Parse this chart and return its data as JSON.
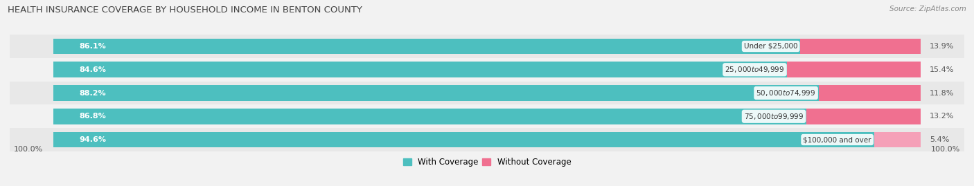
{
  "title": "HEALTH INSURANCE COVERAGE BY HOUSEHOLD INCOME IN BENTON COUNTY",
  "source": "Source: ZipAtlas.com",
  "categories": [
    "Under $25,000",
    "$25,000 to $49,999",
    "$50,000 to $74,999",
    "$75,000 to $99,999",
    "$100,000 and over"
  ],
  "with_coverage": [
    86.1,
    84.6,
    88.2,
    86.8,
    94.6
  ],
  "without_coverage": [
    13.9,
    15.4,
    11.8,
    13.2,
    5.4
  ],
  "color_coverage": "#4dbfbf",
  "color_nocoverage": "#f07090",
  "color_nocoverage_last": "#f5a0b8",
  "bar_height": 0.68,
  "background_color": "#f2f2f2",
  "row_colors": [
    "#e8e8e8",
    "#f2f2f2"
  ],
  "legend_coverage": "With Coverage",
  "legend_nocoverage": "Without Coverage",
  "x_left_label": "100.0%",
  "x_right_label": "100.0%"
}
